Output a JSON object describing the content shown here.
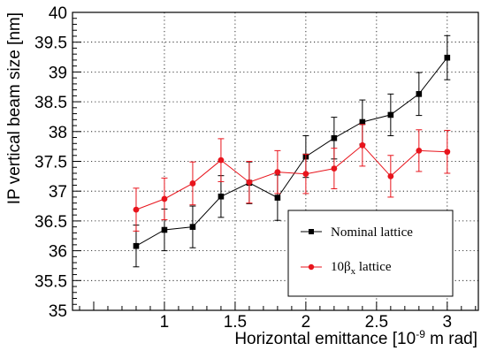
{
  "chart_data": {
    "type": "scatter",
    "title": "",
    "xlabel": "Horizontal emittance [10",
    "xlabel_exponent": "-9",
    "xlabel_suffix": " m rad]",
    "ylabel": "IP vertical beam size [nm]",
    "xlim": [
      0.35,
      3.22
    ],
    "ylim": [
      35,
      40
    ],
    "x_ticks": [
      1,
      1.5,
      2,
      2.5,
      3
    ],
    "x_tick_labels": [
      "1",
      "1.5",
      "2",
      "2.5",
      "3"
    ],
    "y_ticks": [
      35,
      35.5,
      36,
      36.5,
      37,
      37.5,
      38,
      38.5,
      39,
      39.5,
      40
    ],
    "y_tick_labels": [
      "35",
      "35.5",
      "36",
      "36.5",
      "37",
      "37.5",
      "38",
      "38.5",
      "39",
      "39.5",
      "40"
    ],
    "grid": true,
    "legend_position": "bottom-right",
    "x": [
      0.8,
      1.0,
      1.2,
      1.4,
      1.6,
      1.8,
      2.0,
      2.2,
      2.4,
      2.6,
      2.8,
      3.0
    ],
    "series": [
      {
        "name": "Nominal lattice",
        "legend_label": "Nominal lattice",
        "color": "#000000",
        "marker": "square",
        "values": [
          36.08,
          36.35,
          36.4,
          36.91,
          37.14,
          36.89,
          37.58,
          37.89,
          38.16,
          38.28,
          38.63,
          39.24
        ],
        "errors": [
          0.35,
          0.35,
          0.35,
          0.35,
          0.35,
          0.38,
          0.35,
          0.35,
          0.37,
          0.35,
          0.36,
          0.37
        ]
      },
      {
        "name": "10βx lattice",
        "legend_label_main": "10β",
        "legend_label_sub": "x",
        "legend_label_suffix": " lattice",
        "color": "#e8141c",
        "marker": "circle",
        "values": [
          36.69,
          36.87,
          37.13,
          37.52,
          37.15,
          37.32,
          37.29,
          37.38,
          37.77,
          37.25,
          37.68,
          37.66
        ],
        "errors": [
          0.36,
          0.35,
          0.36,
          0.36,
          0.35,
          0.36,
          0.33,
          0.34,
          0.35,
          0.35,
          0.35,
          0.36
        ]
      }
    ]
  }
}
